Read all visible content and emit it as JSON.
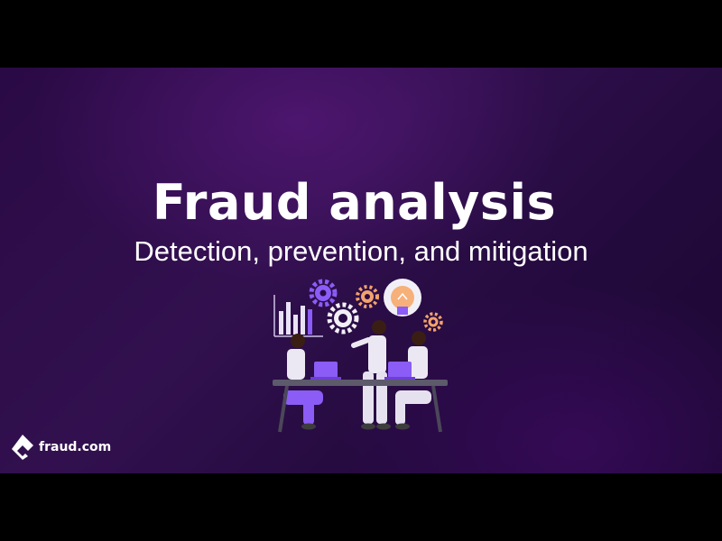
{
  "slide": {
    "title": "Fraud analysis",
    "subtitle": "Detection, prevention, and mitigation"
  },
  "illustration": {
    "description_icon": "team-analysis-illustration"
  },
  "brand": {
    "name": "fraud.com",
    "logo_icon": "fraud-logo-icon"
  },
  "colors": {
    "background_dark": "#23093d",
    "accent_purple": "#8b5cf6",
    "accent_orange": "#f3a26b",
    "text": "#ffffff"
  }
}
